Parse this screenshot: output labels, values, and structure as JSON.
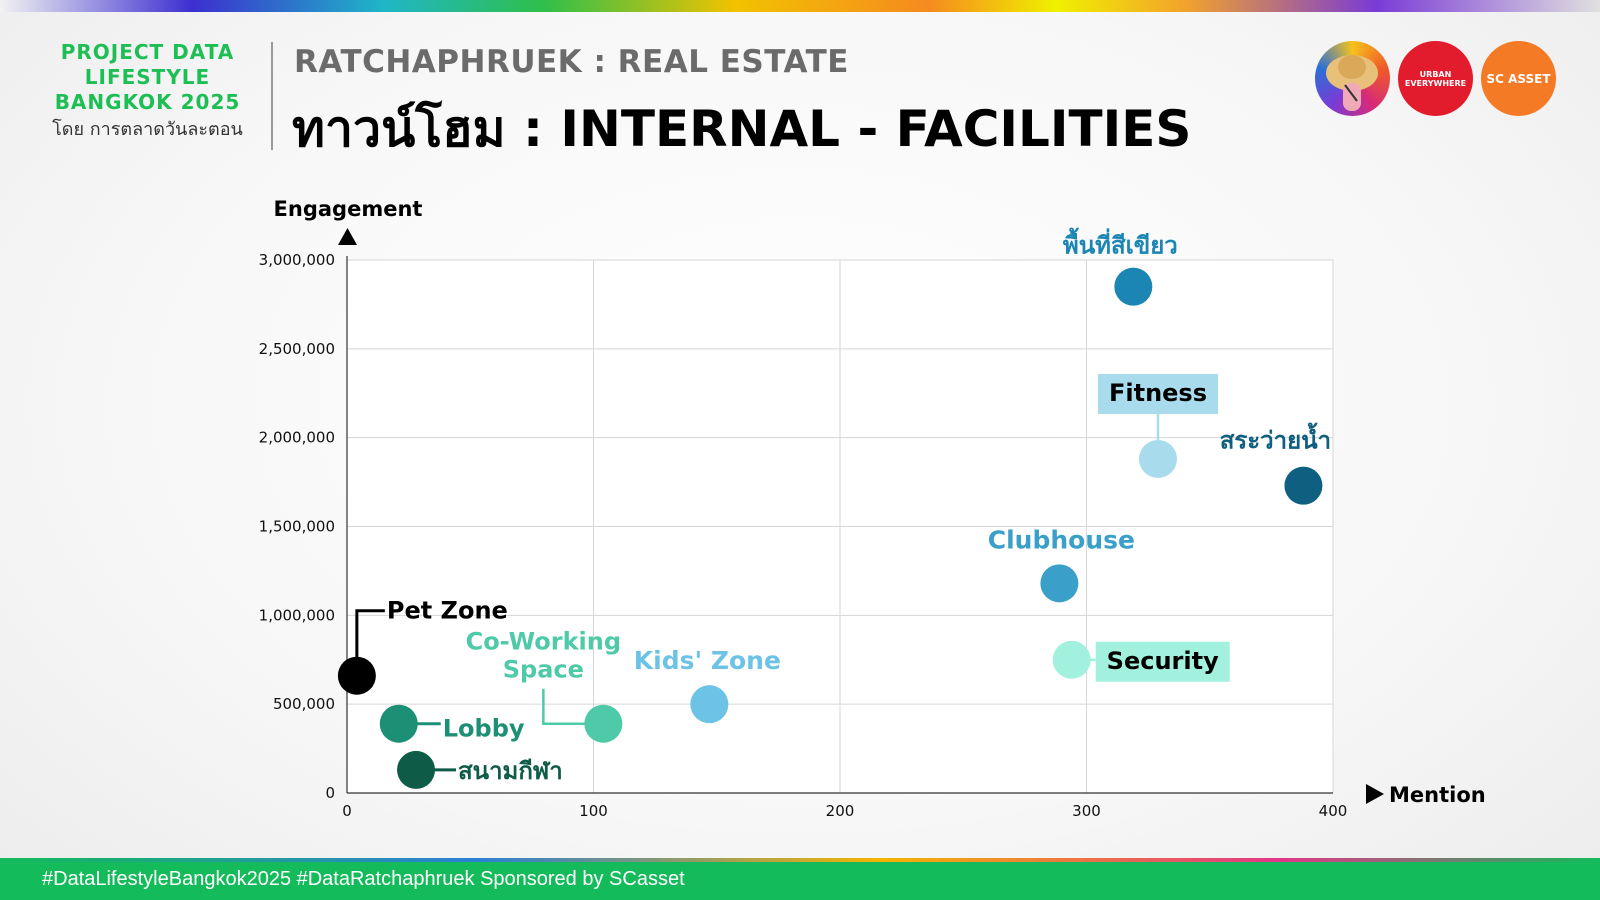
{
  "brand": {
    "lines": [
      "PROJECT DATA",
      "LIFESTYLE",
      "BANGKOK 2025"
    ],
    "by": "โดย การตลาดวันละตอน"
  },
  "header": {
    "subtitle": "RATCHAPHRUEK : REAL ESTATE",
    "title": "ทาวน์โฮม : INTERNAL - FACILITIES"
  },
  "logos": {
    "two": "URBAN EVERYWHERE",
    "three": "SC ASSET"
  },
  "footer": {
    "text": "#DataLifestyleBangkok2025 #DataRatchaphruek Sponsored by SCasset"
  },
  "chart_data": {
    "type": "scatter",
    "xlabel": "Mention",
    "ylabel": "Engagement",
    "xlim": [
      0,
      400
    ],
    "ylim": [
      0,
      3000000
    ],
    "x_ticks": [
      "0",
      "100",
      "200",
      "300",
      "400"
    ],
    "y_ticks": [
      "0",
      "500,000",
      "1,000,000",
      "1,500,000",
      "2,000,000",
      "2,500,000",
      "3,000,000"
    ],
    "grid": true,
    "points": [
      {
        "label": "พื้นที่สีเขียว",
        "x": 319,
        "y": 2850000,
        "color": "#1b86b3"
      },
      {
        "label": "Fitness",
        "x": 329,
        "y": 1880000,
        "color": "#a8dced"
      },
      {
        "label": "สระว่ายน้ำ",
        "x": 388,
        "y": 1730000,
        "color": "#0f5f80"
      },
      {
        "label": "Clubhouse",
        "x": 289,
        "y": 1180000,
        "color": "#3a9fc9"
      },
      {
        "label": "Security",
        "x": 294,
        "y": 750000,
        "color": "#a2f0de"
      },
      {
        "label": "Kids' Zone",
        "x": 147,
        "y": 500000,
        "color": "#6cc3e6"
      },
      {
        "label": "Co-Working Space",
        "x": 104,
        "y": 390000,
        "color": "#4ecaa9"
      },
      {
        "label": "Lobby",
        "x": 21,
        "y": 390000,
        "color": "#1d8f75"
      },
      {
        "label": "สนามกีฬา",
        "x": 28,
        "y": 130000,
        "color": "#0e5b48"
      },
      {
        "label": "Pet Zone",
        "x": 4,
        "y": 660000,
        "color": "#000000"
      }
    ]
  }
}
